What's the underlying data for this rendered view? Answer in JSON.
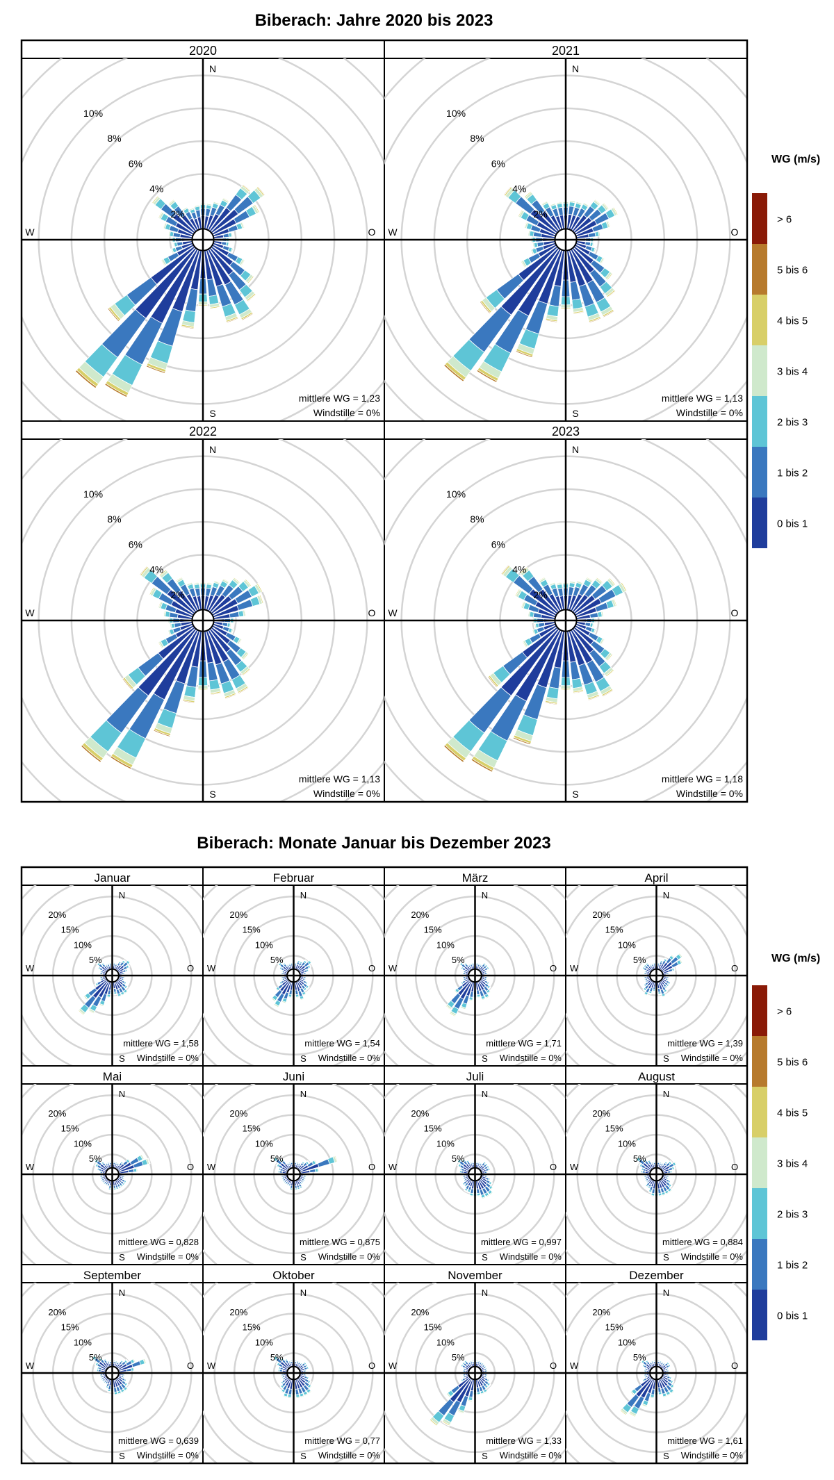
{
  "legend": {
    "title": "WG (m/s)",
    "classes": [
      {
        "label": "> 6",
        "color": "#8a1a07"
      },
      {
        "label": "5 bis 6",
        "color": "#b77a2c"
      },
      {
        "label": "4 bis 5",
        "color": "#d8cf68"
      },
      {
        "label": "3 bis 4",
        "color": "#cfe9cc"
      },
      {
        "label": "2 bis 3",
        "color": "#5ec5d6"
      },
      {
        "label": "1 bis 2",
        "color": "#3a78bf"
      },
      {
        "label": "0 bis 1",
        "color": "#1f3d9c"
      }
    ]
  },
  "compass": {
    "n": "N",
    "s": "S",
    "w": "W",
    "o": "O"
  },
  "chart_data": [
    {
      "type": "windrose",
      "title": "Biberach: Jahre 2020 bis 2023",
      "ring_labels": [
        "2%",
        "4%",
        "6%",
        "8%",
        "10%"
      ],
      "ring_max": 11,
      "directions_deg": [
        0,
        10,
        20,
        30,
        40,
        50,
        60,
        70,
        80,
        90,
        100,
        110,
        120,
        130,
        140,
        150,
        160,
        170,
        180,
        190,
        200,
        210,
        220,
        230,
        240,
        250,
        260,
        270,
        280,
        290,
        300,
        310,
        320,
        330,
        340,
        350
      ],
      "speed_classes": [
        "0 bis 1",
        "1 bis 2",
        "2 bis 3",
        "3 bis 4",
        "4 bis 5",
        "5 bis 6",
        "> 6"
      ],
      "panels": [
        {
          "title": "2020",
          "mean_label": "mittlere WG = 1,23",
          "calm_label": "Windstille = 0%",
          "totals": [
            1.6,
            1.6,
            1.8,
            2.2,
            3.5,
            4.0,
            3.2,
            2.0,
            1.2,
            1.0,
            1.0,
            1.3,
            2.2,
            3.2,
            4.0,
            4.8,
            4.6,
            3.6,
            3.4,
            4.8,
            7.8,
            10.0,
            10.5,
            6.5,
            2.2,
            1.4,
            1.2,
            1.3,
            1.5,
            1.9,
            2.4,
            3.2,
            2.4,
            1.6,
            1.4,
            1.5
          ]
        },
        {
          "title": "2021",
          "mean_label": "mittlere WG = 1,13",
          "calm_label": "Windstille = 0%",
          "totals": [
            1.7,
            1.8,
            1.8,
            1.9,
            2.4,
            2.6,
            2.9,
            2.2,
            1.5,
            1.1,
            1.1,
            1.3,
            2.0,
            2.9,
            3.7,
            4.6,
            4.6,
            3.9,
            3.6,
            4.4,
            6.8,
            9.0,
            10.0,
            5.8,
            2.4,
            1.6,
            1.4,
            1.5,
            1.7,
            2.0,
            2.6,
            4.0,
            3.0,
            2.0,
            1.7,
            1.7
          ]
        },
        {
          "title": "2022",
          "mean_label": "mittlere WG = 1,13",
          "calm_label": "Windstille = 0%",
          "totals": [
            1.7,
            1.7,
            1.9,
            2.2,
            2.6,
            3.0,
            3.4,
            3.2,
            2.0,
            1.3,
            1.1,
            1.3,
            2.0,
            2.8,
            3.5,
            4.3,
            4.3,
            3.9,
            3.6,
            4.4,
            6.7,
            9.4,
            10.0,
            5.4,
            2.4,
            1.6,
            1.4,
            1.5,
            1.8,
            2.2,
            3.0,
            4.1,
            3.2,
            2.3,
            1.8,
            1.7
          ]
        },
        {
          "title": "2023",
          "mean_label": "mittlere WG = 1,18",
          "calm_label": "Windstille = 0%",
          "totals": [
            1.7,
            1.8,
            1.9,
            2.3,
            2.6,
            3.1,
            3.5,
            2.6,
            1.7,
            1.2,
            1.1,
            1.3,
            2.0,
            2.9,
            3.6,
            4.5,
            4.4,
            3.8,
            3.6,
            4.5,
            7.2,
            9.6,
            10.0,
            5.2,
            2.3,
            1.5,
            1.3,
            1.4,
            1.7,
            2.2,
            2.8,
            4.2,
            3.4,
            2.3,
            1.8,
            1.7
          ]
        }
      ]
    },
    {
      "type": "windrose",
      "title": "Biberach: Monate Januar bis Dezember 2023",
      "ring_labels": [
        "5%",
        "10%",
        "15%",
        "20%"
      ],
      "ring_max": 27,
      "directions_deg": [
        0,
        10,
        20,
        30,
        40,
        50,
        60,
        70,
        80,
        90,
        100,
        110,
        120,
        130,
        140,
        150,
        160,
        170,
        180,
        190,
        200,
        210,
        220,
        230,
        240,
        250,
        260,
        270,
        280,
        290,
        300,
        310,
        320,
        330,
        340,
        350
      ],
      "speed_classes": [
        "0 bis 1",
        "1 bis 2",
        "2 bis 3",
        "3 bis 4",
        "4 bis 5",
        "5 bis 6",
        "> 6"
      ],
      "panels": [
        {
          "title": "Januar",
          "mean_label": "mittlere WG = 1,58",
          "calm_label": "Windstille = 0%",
          "totals": [
            2,
            2,
            2,
            3,
            4,
            5,
            4,
            3,
            2,
            2,
            2,
            2,
            3,
            4,
            5,
            5,
            5,
            4,
            4,
            5,
            8,
            11,
            13,
            9,
            4,
            2,
            2,
            2,
            2,
            2,
            3,
            4,
            3,
            2,
            2,
            2
          ]
        },
        {
          "title": "Februar",
          "mean_label": "mittlere WG = 1,54",
          "calm_label": "Windstille = 0%",
          "totals": [
            2,
            2,
            3,
            3,
            4,
            5,
            4,
            3,
            2,
            2,
            2,
            2,
            3,
            4,
            4,
            5,
            6,
            5,
            4,
            5,
            7,
            9,
            8,
            5,
            3,
            2,
            2,
            2,
            2,
            2,
            3,
            4,
            3,
            2,
            2,
            2
          ]
        },
        {
          "title": "März",
          "mean_label": "mittlere WG = 1,71",
          "calm_label": "Windstille = 0%",
          "totals": [
            2,
            2,
            2,
            2,
            3,
            3,
            3,
            2,
            2,
            2,
            2,
            2,
            3,
            4,
            5,
            6,
            6,
            5,
            5,
            6,
            9,
            12,
            11,
            6,
            3,
            2,
            2,
            2,
            2,
            2,
            3,
            4,
            3,
            2,
            2,
            2
          ]
        },
        {
          "title": "April",
          "mean_label": "mittlere WG = 1,39",
          "calm_label": "Windstille = 0%",
          "totals": [
            2,
            2,
            3,
            4,
            6,
            8,
            7,
            4,
            2,
            2,
            2,
            2,
            3,
            3,
            3,
            4,
            5,
            4,
            3,
            3,
            4,
            5,
            4,
            3,
            2,
            2,
            2,
            2,
            2,
            2,
            3,
            3,
            3,
            2,
            2,
            2
          ]
        },
        {
          "title": "Mai",
          "mean_label": "mittlere WG = 0,828",
          "calm_label": "Windstille = 0%",
          "totals": [
            2,
            2,
            2,
            2,
            3,
            5,
            9,
            10,
            6,
            3,
            2,
            2,
            3,
            3,
            3,
            3,
            3,
            3,
            3,
            3,
            2,
            2,
            2,
            2,
            2,
            2,
            2,
            2,
            2,
            3,
            4,
            5,
            3,
            2,
            2,
            2
          ]
        },
        {
          "title": "Juni",
          "mean_label": "mittlere WG = 0,875",
          "calm_label": "Windstille = 0%",
          "totals": [
            2,
            2,
            2,
            2,
            3,
            4,
            6,
            12,
            6,
            3,
            2,
            2,
            2,
            2,
            2,
            3,
            3,
            3,
            3,
            3,
            2,
            2,
            2,
            2,
            2,
            2,
            2,
            2,
            3,
            3,
            4,
            6,
            4,
            2,
            2,
            2
          ]
        },
        {
          "title": "Juli",
          "mean_label": "mittlere WG = 0,997",
          "calm_label": "Windstille = 0%",
          "totals": [
            2,
            2,
            2,
            2,
            3,
            3,
            3,
            3,
            2,
            2,
            2,
            3,
            4,
            5,
            6,
            6,
            6,
            5,
            5,
            5,
            4,
            4,
            3,
            3,
            2,
            2,
            2,
            2,
            3,
            3,
            4,
            5,
            4,
            3,
            2,
            2
          ]
        },
        {
          "title": "August",
          "mean_label": "mittlere WG = 0,884",
          "calm_label": "Windstille = 0%",
          "totals": [
            2,
            2,
            2,
            2,
            3,
            4,
            5,
            4,
            3,
            2,
            2,
            2,
            3,
            4,
            5,
            5,
            5,
            5,
            5,
            5,
            4,
            3,
            3,
            2,
            2,
            2,
            2,
            2,
            3,
            3,
            4,
            6,
            4,
            3,
            2,
            2
          ]
        },
        {
          "title": "September",
          "mean_label": "mittlere WG = 0,639",
          "calm_label": "Windstille = 0%",
          "totals": [
            2,
            2,
            2,
            2,
            3,
            4,
            6,
            9,
            5,
            3,
            2,
            2,
            3,
            4,
            5,
            5,
            5,
            5,
            4,
            4,
            3,
            2,
            2,
            2,
            2,
            2,
            2,
            2,
            3,
            3,
            4,
            6,
            4,
            3,
            2,
            2
          ]
        },
        {
          "title": "Oktober",
          "mean_label": "mittlere WG = 0,77",
          "calm_label": "Windstille = 0%",
          "totals": [
            2,
            2,
            2,
            2,
            2,
            3,
            3,
            3,
            2,
            2,
            2,
            3,
            4,
            5,
            6,
            6,
            6,
            6,
            5,
            6,
            6,
            5,
            4,
            3,
            2,
            2,
            2,
            2,
            3,
            3,
            4,
            6,
            4,
            3,
            2,
            2
          ]
        },
        {
          "title": "November",
          "mean_label": "mittlere WG = 1,33",
          "calm_label": "Windstille = 0%",
          "totals": [
            2,
            2,
            2,
            2,
            2,
            2,
            2,
            2,
            2,
            2,
            2,
            2,
            3,
            4,
            4,
            5,
            5,
            5,
            5,
            7,
            11,
            16,
            18,
            9,
            3,
            2,
            2,
            2,
            2,
            2,
            3,
            3,
            3,
            2,
            2,
            2
          ]
        },
        {
          "title": "Dezember",
          "mean_label": "mittlere WG = 1,61",
          "calm_label": "Windstille = 0%",
          "totals": [
            2,
            2,
            2,
            2,
            2,
            3,
            3,
            2,
            2,
            2,
            2,
            3,
            4,
            5,
            6,
            6,
            6,
            5,
            5,
            6,
            9,
            13,
            14,
            8,
            3,
            2,
            2,
            2,
            2,
            2,
            3,
            4,
            3,
            2,
            2,
            2
          ]
        }
      ]
    }
  ]
}
